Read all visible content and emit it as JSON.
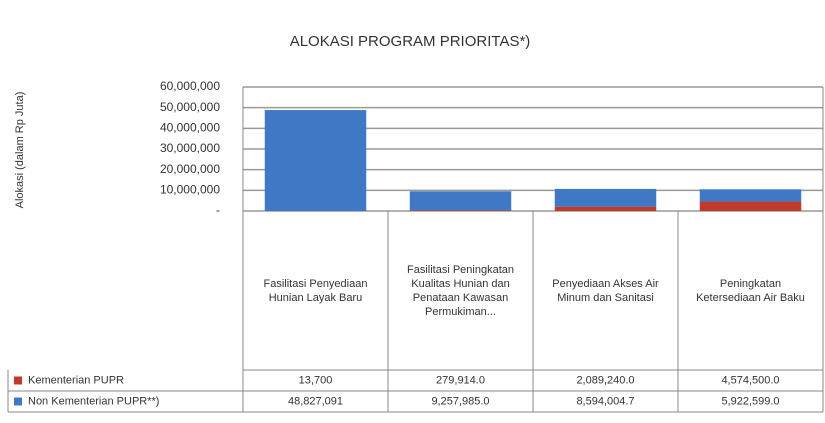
{
  "chart_data": {
    "type": "bar",
    "stacked": true,
    "title": "ALOKASI PROGRAM PRIORITAS*)",
    "ylabel": "Alokasi (dalam Rp Juta)",
    "categories": [
      "Fasilitasi Penyediaan Hunian Layak Baru",
      "Fasilitasi Peningkatan Kualitas Hunian dan Penataan Kawasan Permukiman...",
      "Penyediaan Akses Air Minum dan Sanitasi",
      "Peningkatan Ketersediaan Air Baku"
    ],
    "series": [
      {
        "name": "Kementerian PUPR",
        "color": "#c0392b",
        "values": [
          13700,
          279914,
          2089240,
          4574500
        ],
        "value_labels": [
          "13,700",
          "279,914.0",
          "2,089,240.0",
          "4,574,500.0"
        ]
      },
      {
        "name": "Non Kementerian PUPR**)",
        "color": "#3f78c4",
        "values": [
          48827091,
          9257985,
          8594004.7,
          5922599
        ],
        "value_labels": [
          "48,827,091",
          "9,257,985.0",
          "8,594,004.7",
          "5,922,599.0"
        ]
      }
    ],
    "ylim": [
      0,
      60000000
    ],
    "yticks": [
      {
        "value": 0,
        "label": "-"
      },
      {
        "value": 10000000,
        "label": "10,000,000"
      },
      {
        "value": 20000000,
        "label": "20,000,000"
      },
      {
        "value": 30000000,
        "label": "30,000,000"
      },
      {
        "value": 40000000,
        "label": "40,000,000"
      },
      {
        "value": 50000000,
        "label": "50,000,000"
      },
      {
        "value": 60000000,
        "label": "60,000,000"
      }
    ],
    "grid": true
  }
}
